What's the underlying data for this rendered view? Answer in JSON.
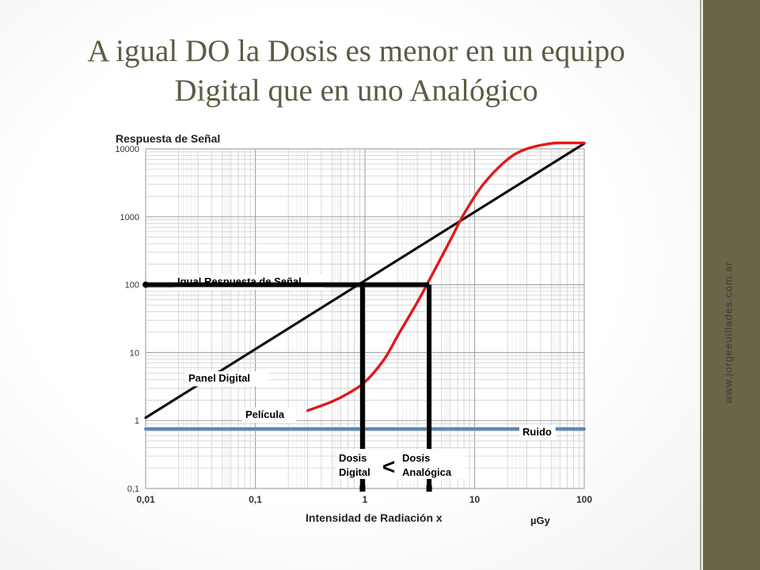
{
  "slide": {
    "title_line1": "A igual DO la Dosis es menor en un equipo",
    "title_line2": "Digital que en uno Analógico",
    "watermark": "www.jorgeeuillades.com.ar"
  },
  "colors": {
    "sidebar": "#6b6548",
    "title": "#5f5a44",
    "digital_line": "#111111",
    "film_curve": "#e0191b",
    "noise_line": "#5b86b5",
    "grid": "#c8c8c8",
    "marker": "#000000"
  },
  "chart_data": {
    "type": "line",
    "x_scale": "log",
    "y_scale": "log",
    "xlabel": "Intensidad de Radiación x",
    "x_unit": "µGy",
    "ylabel": "Respuesta de Señal",
    "xlim": [
      0.01,
      100
    ],
    "ylim": [
      0.1,
      10000
    ],
    "x_ticks": [
      "0,01",
      "0,1",
      "1",
      "10",
      "100"
    ],
    "y_ticks": [
      "0,1",
      "1",
      "10",
      "100",
      "1000",
      "10000"
    ],
    "grid": true,
    "series": [
      {
        "name": "Panel Digital",
        "x": [
          0.01,
          100
        ],
        "y": [
          1.1,
          12000
        ]
      },
      {
        "name": "Película",
        "x": [
          0.3,
          0.5,
          0.7,
          1.0,
          1.5,
          2.0,
          3.0,
          4.0,
          6.0,
          8.0,
          12.0,
          20.0,
          30.0,
          50.0,
          70.0,
          100.0
        ],
        "y": [
          1.4,
          1.9,
          2.5,
          3.7,
          8.0,
          18.0,
          55.0,
          130.0,
          450.0,
          1100.0,
          3000.0,
          7000.0,
          10000.0,
          12000.0,
          12200.0,
          12200.0
        ]
      },
      {
        "name": "Ruido",
        "x": [
          0.01,
          100
        ],
        "y": [
          0.75,
          0.75
        ]
      }
    ],
    "annotations": {
      "equal_response": "Igual Respuesta de Señal",
      "equal_response_y": 100,
      "dose_digital_x": 0.95,
      "dose_analog_x": 3.85,
      "dose_digital": "Dosis Digital",
      "dose_analog": "Dosis Analógica",
      "comparison": "<"
    }
  }
}
